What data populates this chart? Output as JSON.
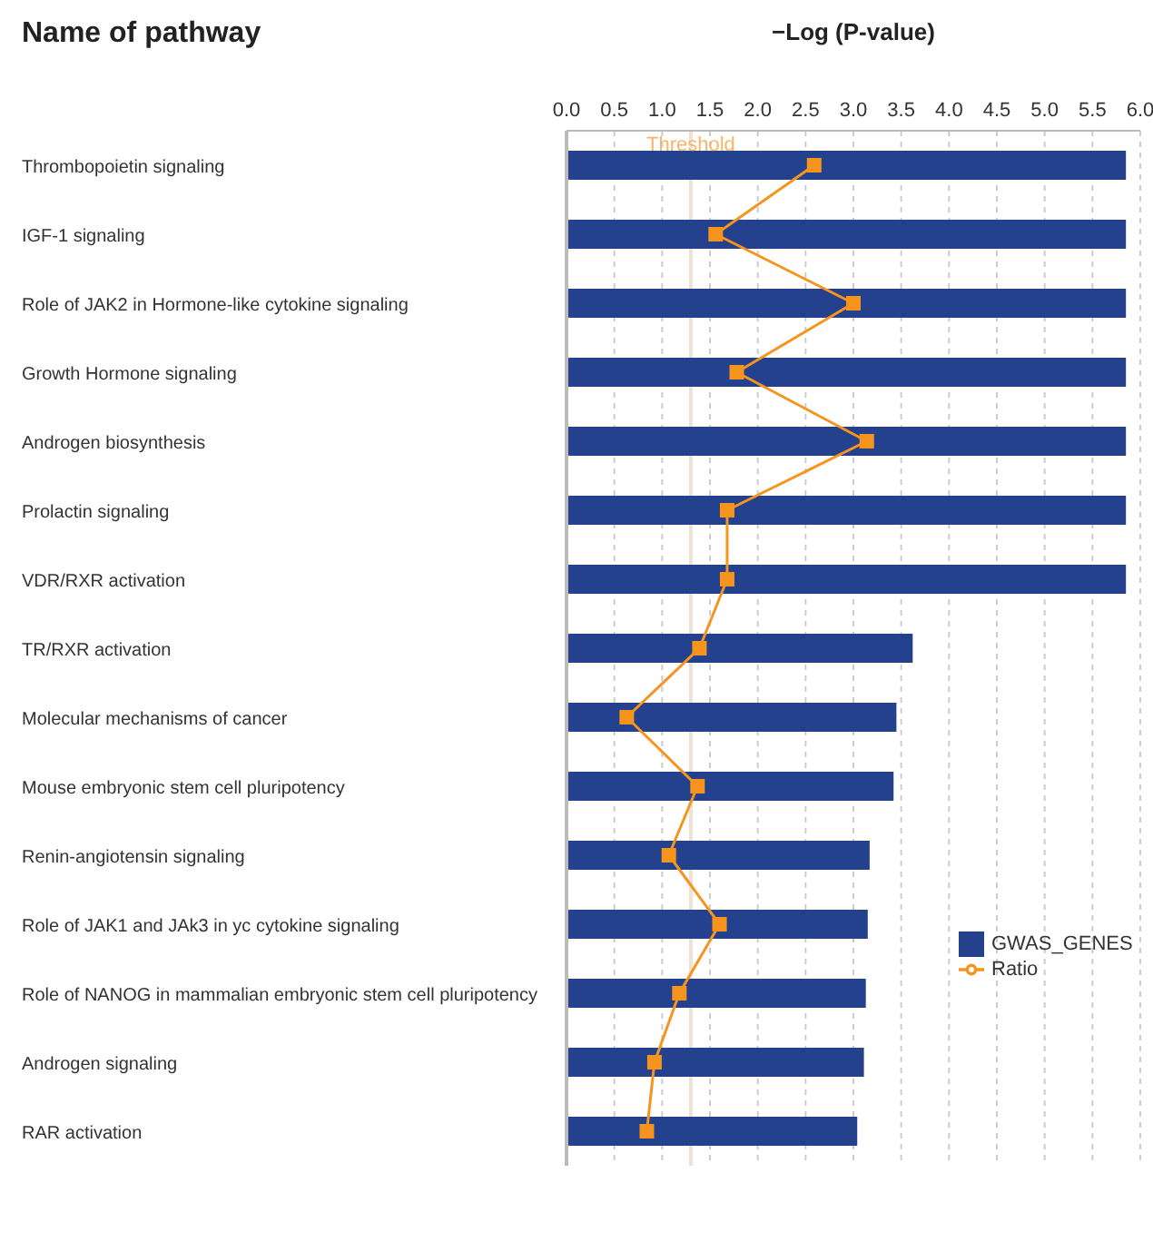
{
  "chart_data": {
    "type": "bar",
    "orientation": "horizontal",
    "ylabel": "Name of pathway",
    "xlabel": "−Log (P-value)",
    "categories": [
      "Thrombopoietin signaling",
      "IGF-1 signaling",
      "Role of JAK2 in Hormone-like cytokine signaling",
      "Growth Hormone signaling",
      "Androgen biosynthesis",
      "Prolactin signaling",
      "VDR/RXR activation",
      "TR/RXR activation",
      "Molecular mechanisms of cancer",
      "Mouse embryonic stem cell pluripotency",
      "Renin-angiotensin signaling",
      "Role of JAK1 and JAk3 in yc cytokine signaling",
      "Role of NANOG in mammalian embryonic stem cell pluripotency",
      "Androgen signaling",
      "RAR activation"
    ],
    "series": [
      {
        "name": "GWAS_GENES",
        "color": "#24418e",
        "values": [
          5.85,
          5.85,
          5.85,
          5.85,
          5.85,
          5.85,
          5.85,
          3.62,
          3.45,
          3.42,
          3.17,
          3.15,
          3.13,
          3.11,
          3.04
        ]
      },
      {
        "name": "Ratio",
        "type": "line",
        "color": "#f7941d",
        "marker": "square",
        "values": [
          2.59,
          1.56,
          3.0,
          1.78,
          3.14,
          1.68,
          1.68,
          1.39,
          0.63,
          1.37,
          1.07,
          1.6,
          1.18,
          0.92,
          0.84
        ]
      }
    ],
    "xlim": [
      0,
      6
    ],
    "xticks": [
      {
        "value": 0,
        "label": "0.0"
      },
      {
        "value": 0.5,
        "label": "0.5"
      },
      {
        "value": 1,
        "label": "1.0"
      },
      {
        "value": 1.5,
        "label": "1.5"
      },
      {
        "value": 2,
        "label": "2.0"
      },
      {
        "value": 2.5,
        "label": "2.5"
      },
      {
        "value": 3,
        "label": "3.0"
      },
      {
        "value": 3.5,
        "label": "3.5"
      },
      {
        "value": 4,
        "label": "4.0"
      },
      {
        "value": 4.5,
        "label": "4.5"
      },
      {
        "value": 5,
        "label": "5.0"
      },
      {
        "value": 5.5,
        "label": "5.5"
      },
      {
        "value": 6,
        "label": "6.0"
      }
    ],
    "ref_lines": [
      {
        "axis": "x",
        "value": 1.3,
        "label": "Threshold",
        "color": "#ece2d6"
      }
    ],
    "grid": "x",
    "legend": "right"
  }
}
